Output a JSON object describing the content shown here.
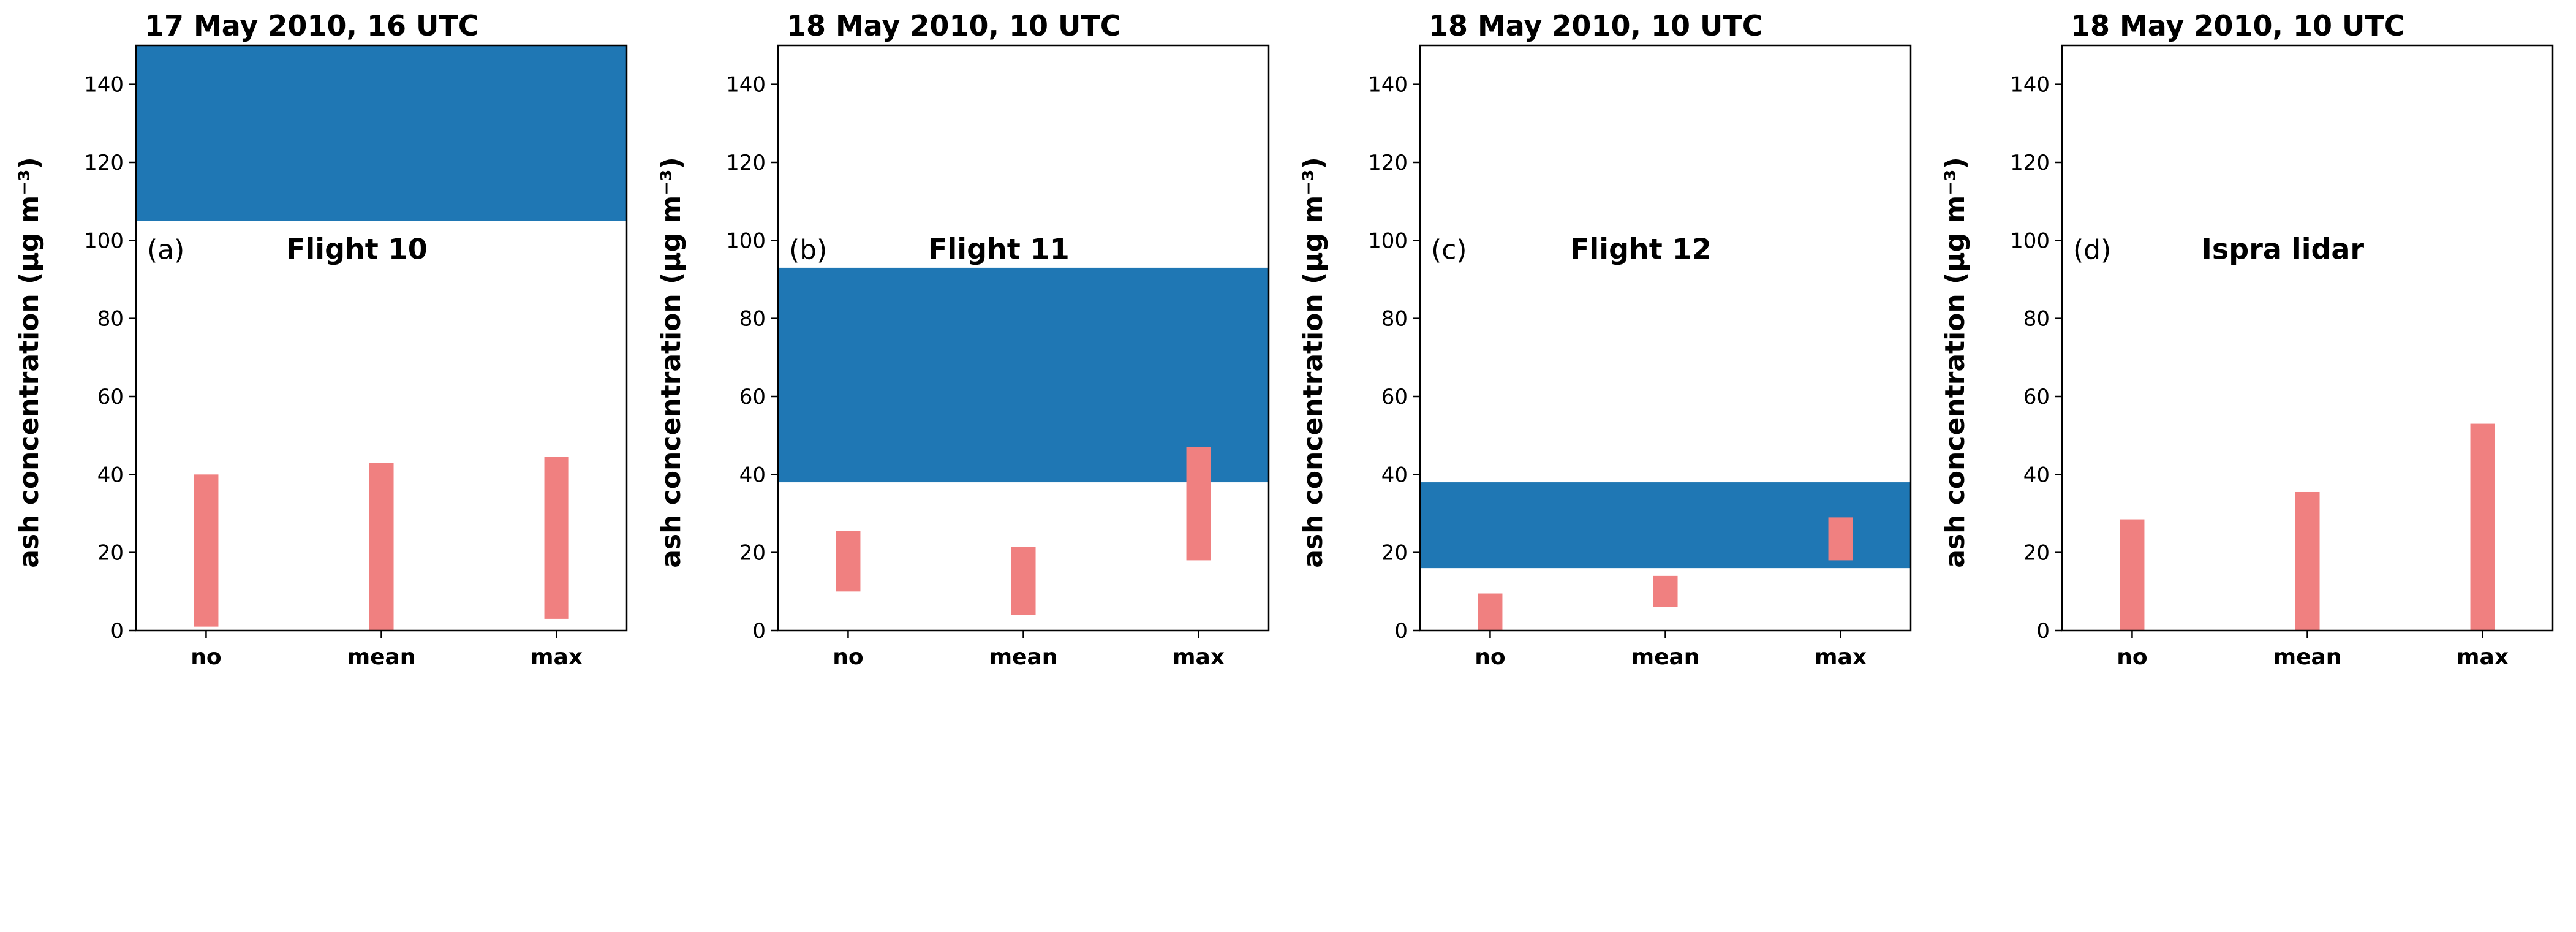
{
  "chart_data": [
    {
      "type": "bar",
      "title": "17 May 2010, 16 UTC",
      "panel_label": "(a)",
      "annotation": "Flight 10",
      "ylabel": "ash concentration (μg m⁻³)",
      "ylim": [
        0,
        150
      ],
      "yticks": [
        0,
        20,
        40,
        60,
        80,
        100,
        120,
        140
      ],
      "categories": [
        "no",
        "mean",
        "max"
      ],
      "observed_range": [
        105,
        150
      ],
      "observed_color": "#1f77b4",
      "bar_color": "#f08080",
      "ranges": [
        [
          1,
          40
        ],
        [
          0,
          43
        ],
        [
          3,
          44.5
        ]
      ]
    },
    {
      "type": "bar",
      "title": "18 May 2010, 10 UTC",
      "panel_label": "(b)",
      "annotation": "Flight 11",
      "ylabel": "ash concentration (μg m⁻³)",
      "ylim": [
        0,
        150
      ],
      "yticks": [
        0,
        20,
        40,
        60,
        80,
        100,
        120,
        140
      ],
      "categories": [
        "no",
        "mean",
        "max"
      ],
      "observed_range": [
        38,
        93
      ],
      "observed_color": "#1f77b4",
      "bar_color": "#f08080",
      "ranges": [
        [
          10,
          25.5
        ],
        [
          4,
          21.5
        ],
        [
          18,
          47
        ]
      ]
    },
    {
      "type": "bar",
      "title": "18 May 2010, 10 UTC",
      "panel_label": "(c)",
      "annotation": "Flight 12",
      "ylabel": "ash concentration (μg m⁻³)",
      "ylim": [
        0,
        150
      ],
      "yticks": [
        0,
        20,
        40,
        60,
        80,
        100,
        120,
        140
      ],
      "categories": [
        "no",
        "mean",
        "max"
      ],
      "observed_range": [
        16,
        38
      ],
      "observed_color": "#1f77b4",
      "bar_color": "#f08080",
      "ranges": [
        [
          0,
          9.5
        ],
        [
          6,
          14
        ],
        [
          18,
          29
        ]
      ]
    },
    {
      "type": "bar",
      "title": "18 May 2010, 10 UTC",
      "panel_label": "(d)",
      "annotation": "Ispra lidar",
      "ylabel": "ash concentration (μg m⁻³)",
      "ylim": [
        0,
        150
      ],
      "yticks": [
        0,
        20,
        40,
        60,
        80,
        100,
        120,
        140
      ],
      "categories": [
        "no",
        "mean",
        "max"
      ],
      "observed_range": null,
      "observed_color": "#1f77b4",
      "bar_color": "#f08080",
      "ranges": [
        [
          0,
          28.5
        ],
        [
          0,
          35.5
        ],
        [
          0,
          53
        ]
      ]
    }
  ]
}
